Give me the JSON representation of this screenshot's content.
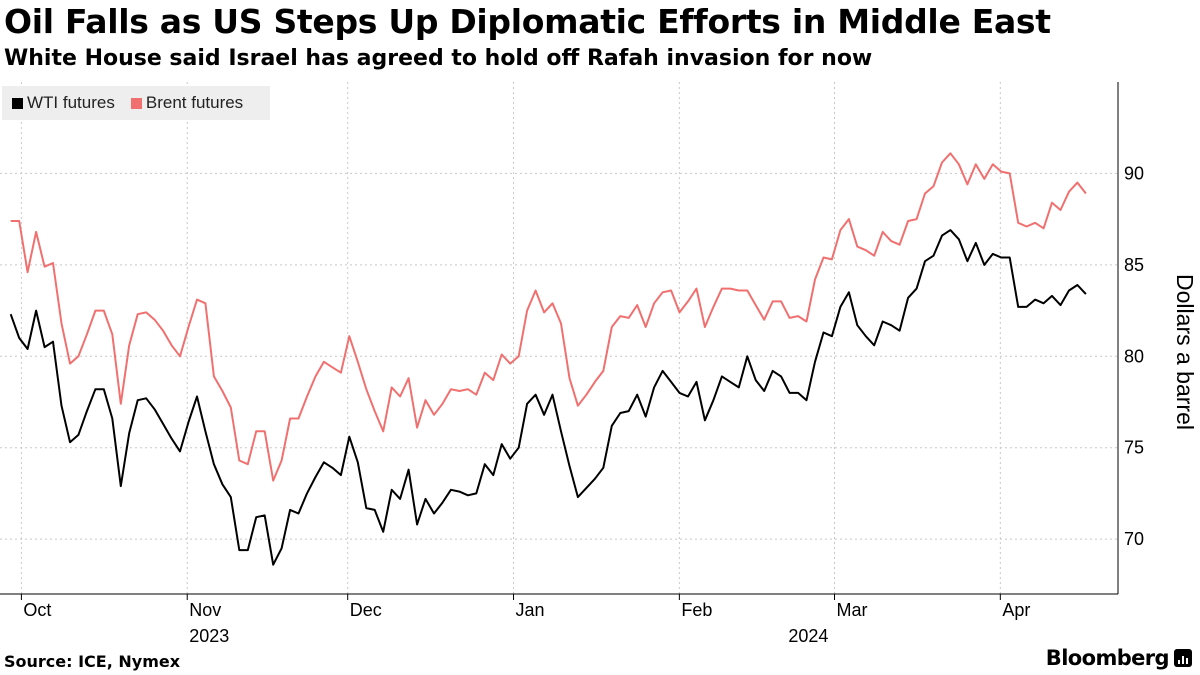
{
  "header": {
    "title": "Oil Falls as US Steps Up Diplomatic Efforts in Middle East",
    "subtitle": "White House said Israel has agreed to hold off Rafah invasion for now"
  },
  "footer": {
    "source": "Source: ICE, Nymex",
    "brand": "Bloomberg"
  },
  "colors": {
    "wti": "#000000",
    "brent": "#f07070",
    "grid": "#c8c8c8",
    "legend_bg": "#eeeeee"
  },
  "chart_data": {
    "type": "line",
    "title": "Oil Falls as US Steps Up Diplomatic Efforts in Middle East",
    "ylabel": "Dollars a barrel",
    "ylim": [
      67,
      95
    ],
    "yticks": [
      70,
      75,
      80,
      85,
      90
    ],
    "legend_position": "top-left",
    "x_start_day": 0,
    "x_end_day": 201,
    "x_axis_min_day": -2,
    "x_axis_max_day": 207,
    "x_note": "x values are day offsets from 2023-09-29",
    "month_ticks": [
      {
        "label": "Oct",
        "day": 2
      },
      {
        "label": "Nov",
        "day": 33
      },
      {
        "label": "Dec",
        "day": 63
      },
      {
        "label": "Jan",
        "day": 94
      },
      {
        "label": "Feb",
        "day": 125
      },
      {
        "label": "Mar",
        "day": 154
      },
      {
        "label": "Apr",
        "day": 185
      }
    ],
    "year_labels": [
      {
        "label": "2023",
        "day": 33
      },
      {
        "label": "2024",
        "day": 145
      }
    ],
    "series": [
      {
        "name": "WTI futures",
        "key": "wti",
        "values": [
          82.3,
          81.0,
          80.4,
          82.5,
          80.5,
          80.8,
          77.3,
          75.3,
          75.7,
          77.0,
          78.2,
          78.2,
          76.6,
          72.9,
          75.8,
          77.6,
          77.7,
          77.1,
          76.3,
          75.5,
          74.8,
          76.4,
          77.8,
          75.9,
          74.1,
          73.0,
          72.3,
          69.4,
          69.4,
          71.2,
          71.3,
          68.6,
          69.5,
          71.6,
          71.4,
          72.5,
          73.4,
          74.2,
          73.9,
          73.5,
          75.6,
          74.2,
          71.7,
          71.6,
          70.4,
          72.7,
          72.2,
          73.8,
          70.8,
          72.2,
          71.4,
          72.0,
          72.7,
          72.6,
          72.4,
          72.5,
          74.1,
          73.5,
          75.2,
          74.4,
          75.0,
          77.4,
          77.9,
          76.8,
          77.9,
          75.9,
          74.0,
          72.3,
          72.8,
          73.3,
          73.9,
          76.2,
          76.9,
          77.0,
          77.9,
          76.7,
          78.3,
          79.2,
          78.6,
          78.0,
          77.8,
          78.6,
          76.5,
          77.6,
          78.9,
          78.6,
          78.3,
          80.0,
          78.7,
          78.1,
          79.2,
          78.9,
          78.0,
          78.0,
          77.6,
          79.7,
          81.3,
          81.1,
          82.7,
          83.5,
          81.7,
          81.1,
          80.6,
          81.9,
          81.7,
          81.4,
          83.2,
          83.7,
          85.2,
          85.5,
          86.6,
          86.9,
          86.4,
          85.2,
          86.2,
          85.0,
          85.6,
          85.4,
          85.4,
          82.7,
          82.7,
          83.1,
          82.9,
          83.3,
          82.8,
          83.6,
          83.9,
          83.4
        ]
      },
      {
        "name": "Brent futures",
        "key": "brent",
        "values": [
          87.4,
          87.4,
          84.6,
          86.8,
          84.9,
          85.1,
          81.8,
          79.6,
          80.0,
          81.2,
          82.5,
          82.5,
          81.2,
          77.4,
          80.6,
          82.3,
          82.4,
          82.0,
          81.4,
          80.6,
          80.0,
          81.6,
          83.1,
          82.9,
          78.9,
          78.1,
          77.2,
          74.3,
          74.1,
          75.9,
          75.9,
          73.2,
          74.3,
          76.6,
          76.6,
          77.8,
          78.9,
          79.7,
          79.4,
          79.1,
          81.1,
          79.7,
          78.2,
          77.0,
          75.9,
          78.3,
          77.8,
          78.8,
          76.1,
          77.6,
          76.8,
          77.4,
          78.2,
          78.1,
          78.2,
          77.9,
          79.1,
          78.7,
          80.1,
          79.6,
          80.0,
          82.5,
          83.6,
          82.4,
          82.9,
          81.8,
          78.8,
          77.3,
          77.9,
          78.6,
          79.2,
          81.6,
          82.2,
          82.1,
          82.8,
          81.6,
          82.9,
          83.5,
          83.6,
          82.4,
          83.0,
          83.7,
          81.6,
          82.7,
          83.7,
          83.7,
          83.6,
          83.6,
          82.8,
          82.0,
          83.0,
          83.0,
          82.1,
          82.2,
          81.9,
          84.2,
          85.4,
          85.3,
          86.9,
          87.5,
          86.0,
          85.8,
          85.5,
          86.8,
          86.3,
          86.1,
          87.4,
          87.5,
          88.9,
          89.3,
          90.6,
          91.1,
          90.5,
          89.4,
          90.5,
          89.7,
          90.5,
          90.1,
          90.0,
          87.3,
          87.1,
          87.3,
          87.0,
          88.4,
          88.0,
          89.0,
          89.5,
          88.9
        ]
      }
    ]
  }
}
